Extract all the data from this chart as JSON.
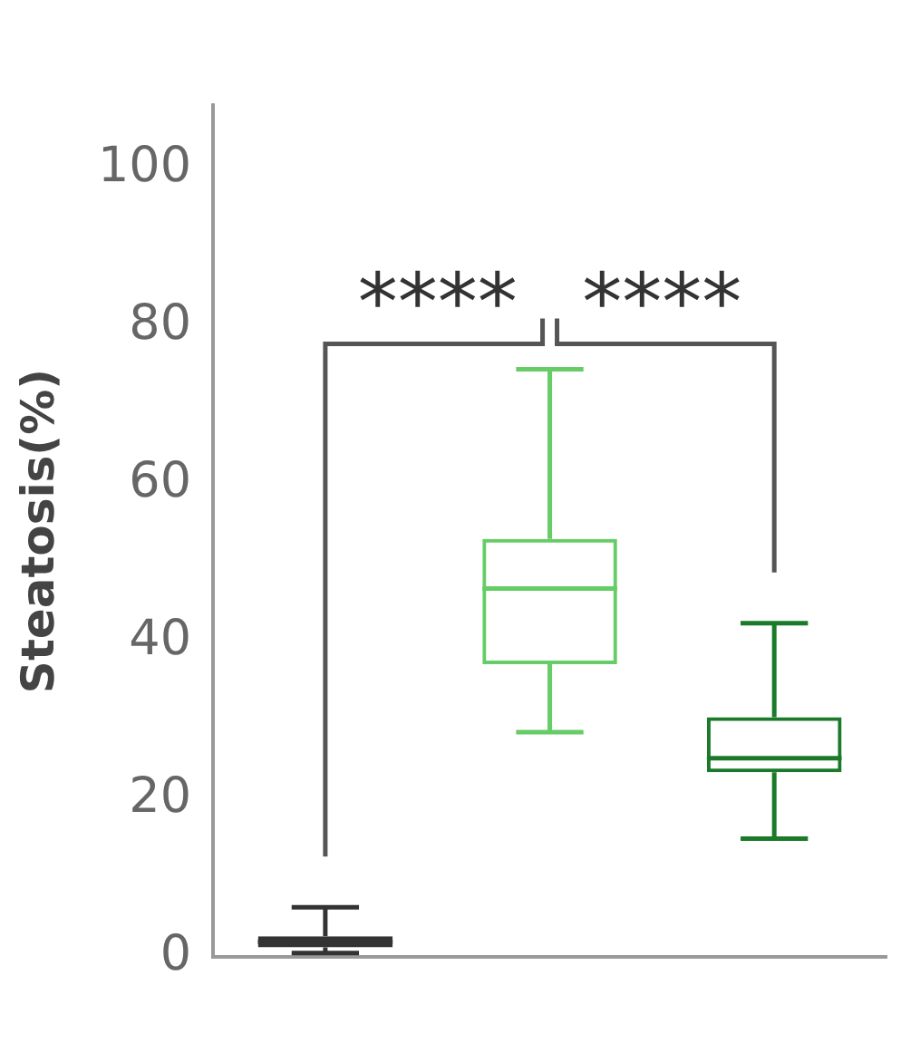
{
  "chart_data": {
    "type": "box",
    "ylabel": "Steatosis(%)",
    "categories": [
      null,
      null,
      null
    ],
    "colors": [
      "#333333",
      "#66cc66",
      "#1a7a2a"
    ],
    "boxes": [
      {
        "low": 0.5,
        "q1": 1.2,
        "median": 1.9,
        "q3": 2.6,
        "high": 6.3
      },
      {
        "low": 28.5,
        "q1": 37.1,
        "median": 46.7,
        "q3": 53,
        "high": 74.5
      },
      {
        "low": 15,
        "q1": 23.4,
        "median": 25.2,
        "q3": 30.4,
        "high": 42.3
      }
    ],
    "ylim": [
      0,
      108
    ],
    "yticks": [
      0,
      20,
      40,
      60,
      80,
      100
    ],
    "annotations": [
      "****",
      "****"
    ],
    "tick_labels": "y",
    "grid": false,
    "legend": false
  }
}
